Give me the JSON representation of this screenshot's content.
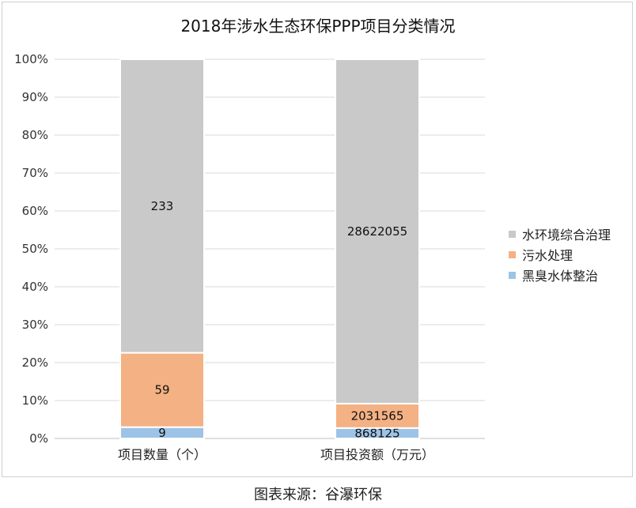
{
  "chart_data": {
    "type": "bar",
    "stacked": "percent",
    "title": "2018年涉水生态环保PPP项目分类情况",
    "categories": [
      "项目数量（个）",
      "项目投资额（万元）"
    ],
    "series": [
      {
        "name": "黑臭水体整治",
        "values": [
          9,
          868125
        ],
        "color": "#9DC3E6"
      },
      {
        "name": "污水处理",
        "values": [
          59,
          2031565
        ],
        "color": "#F4B183"
      },
      {
        "name": "水环境综合治理",
        "values": [
          233,
          28622055
        ],
        "color": "#C9C9C9"
      }
    ],
    "yticks": [
      "0%",
      "10%",
      "20%",
      "30%",
      "40%",
      "50%",
      "60%",
      "70%",
      "80%",
      "90%",
      "100%"
    ],
    "ylim": [
      0,
      100
    ],
    "grid": true,
    "legend_position": "right"
  },
  "legend_items": [
    {
      "label": "水环境综合治理",
      "color": "#C9C9C9"
    },
    {
      "label": "污水处理",
      "color": "#F4B183"
    },
    {
      "label": "黑臭水体整治",
      "color": "#9DC3E6"
    }
  ],
  "source_text": "图表来源：谷瀑环保"
}
